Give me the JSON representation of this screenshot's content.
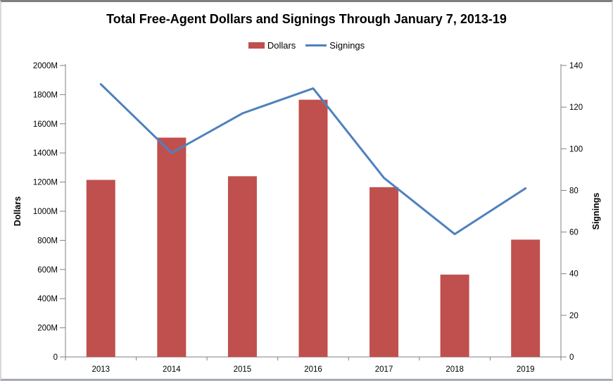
{
  "title": "Total Free-Agent Dollars and Signings Through January 7, 2013-19",
  "legend": {
    "dollars_label": "Dollars",
    "signings_label": "Signings"
  },
  "colors": {
    "bar": "#c0504d",
    "line": "#4f81bd",
    "axis": "#808080",
    "text": "#000000",
    "background": "#ffffff"
  },
  "chart_data": {
    "type": "bar",
    "subtype": "combo-bar-line",
    "title": "Total Free-Agent Dollars and Signings Through January 7, 2013-19",
    "categories": [
      "2013",
      "2014",
      "2015",
      "2016",
      "2017",
      "2018",
      "2019"
    ],
    "series": [
      {
        "name": "Dollars",
        "type": "bar",
        "axis": "left",
        "color": "#c0504d",
        "values": [
          1215,
          1505,
          1240,
          1765,
          1165,
          565,
          805
        ]
      },
      {
        "name": "Signings",
        "type": "line",
        "axis": "right",
        "color": "#4f81bd",
        "values": [
          131,
          98,
          117,
          129,
          86,
          59,
          81
        ]
      }
    ],
    "left_axis": {
      "title": "Dollars",
      "min": 0,
      "max": 2000,
      "step": 200,
      "tick_labels": [
        "0",
        "200M",
        "400M",
        "600M",
        "800M",
        "1000M",
        "1200M",
        "1400M",
        "1600M",
        "1800M",
        "2000M"
      ]
    },
    "right_axis": {
      "title": "Signings",
      "min": 0,
      "max": 140,
      "step": 20,
      "tick_labels": [
        "0",
        "20",
        "40",
        "60",
        "80",
        "100",
        "120",
        "140"
      ]
    },
    "grid": false,
    "legend_position": "top"
  }
}
